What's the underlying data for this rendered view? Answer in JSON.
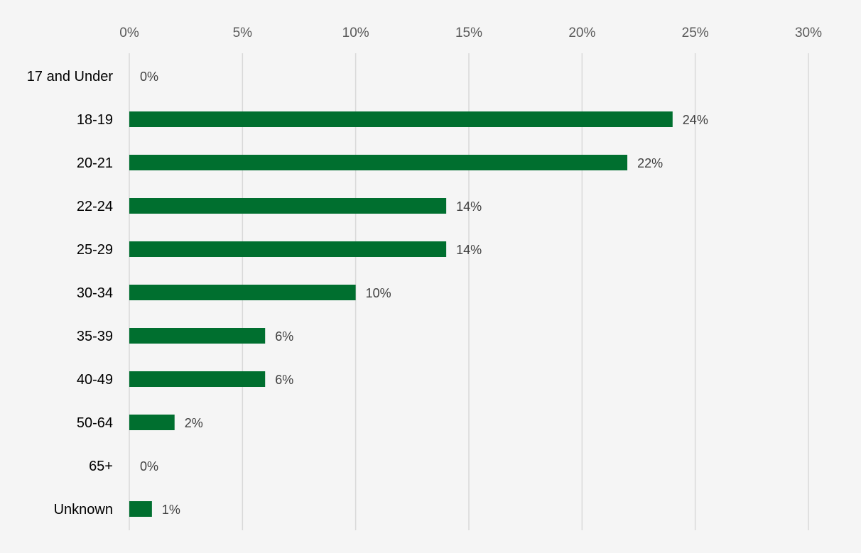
{
  "chart_data": {
    "type": "bar",
    "orientation": "horizontal",
    "title": "",
    "xlabel": "",
    "ylabel": "",
    "categories": [
      "17 and Under",
      "18-19",
      "20-21",
      "22-24",
      "25-29",
      "30-34",
      "35-39",
      "40-49",
      "50-64",
      "65+",
      "Unknown"
    ],
    "values": [
      0,
      24,
      22,
      14,
      14,
      10,
      6,
      6,
      2,
      0,
      1
    ],
    "data_labels": [
      "0%",
      "24%",
      "22%",
      "14%",
      "14%",
      "10%",
      "6%",
      "6%",
      "2%",
      "0%",
      "1%"
    ],
    "x_ticks": [
      "0%",
      "5%",
      "10%",
      "15%",
      "20%",
      "25%",
      "30%"
    ],
    "xlim": [
      0,
      30
    ],
    "x_axis_position": "top",
    "grid": true,
    "legend": "none",
    "colors": {
      "bar": "#006f2f",
      "grid": "#d9d9d9",
      "background": "#f5f5f5"
    }
  }
}
